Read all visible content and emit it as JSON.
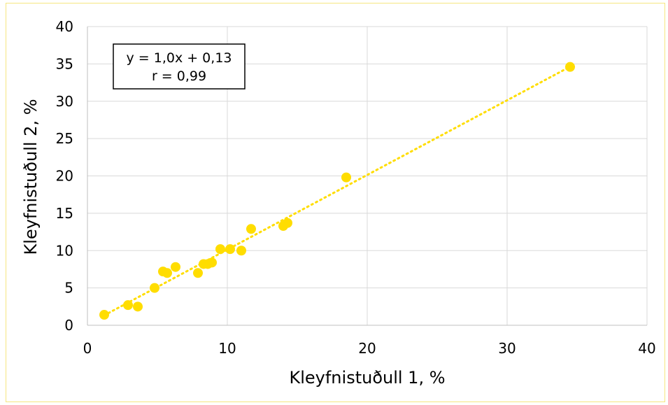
{
  "chart_data": {
    "type": "scatter",
    "xlabel": "Kleyfnistuðull 1, %",
    "ylabel": "Kleyfnistuðull 2, %",
    "xlim": [
      0,
      40
    ],
    "ylim": [
      0,
      40
    ],
    "x_ticks": [
      0,
      10,
      20,
      30,
      40
    ],
    "y_ticks": [
      0,
      5,
      10,
      15,
      20,
      25,
      30,
      35,
      40
    ],
    "grid": true,
    "series": [
      {
        "color": "#ffdd00",
        "points": [
          [
            1.2,
            1.4
          ],
          [
            2.9,
            2.7
          ],
          [
            3.6,
            2.5
          ],
          [
            4.8,
            5.0
          ],
          [
            5.4,
            7.2
          ],
          [
            5.7,
            7.0
          ],
          [
            6.3,
            7.8
          ],
          [
            7.9,
            7.0
          ],
          [
            8.3,
            8.2
          ],
          [
            8.6,
            8.2
          ],
          [
            8.9,
            8.4
          ],
          [
            9.5,
            10.2
          ],
          [
            10.2,
            10.2
          ],
          [
            11.0,
            10.0
          ],
          [
            11.7,
            12.9
          ],
          [
            14.0,
            13.3
          ],
          [
            14.3,
            13.7
          ],
          [
            18.5,
            19.8
          ],
          [
            34.5,
            34.6
          ]
        ]
      }
    ],
    "trendline": {
      "style": "dotted",
      "color": "#ffdd00",
      "x_range": [
        1.2,
        34.5
      ],
      "slope": 1.0,
      "intercept": 0.13
    },
    "annotation": {
      "lines": [
        "y = 1,0x + 0,13",
        "r = 0,99"
      ]
    }
  }
}
